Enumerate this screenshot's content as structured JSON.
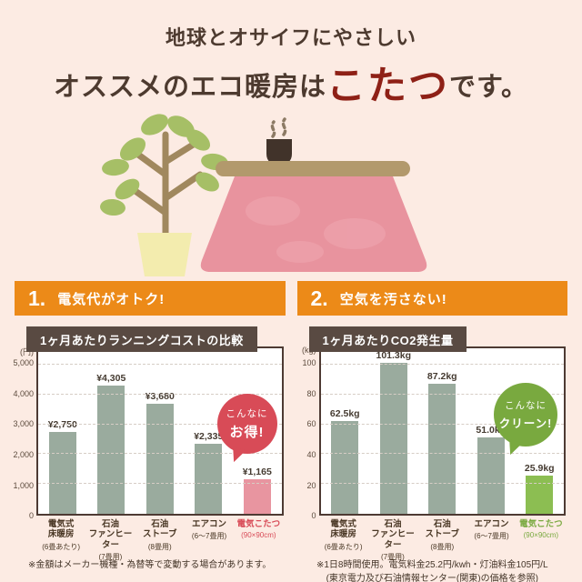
{
  "page": {
    "background": "#fcebe3"
  },
  "header": {
    "line1": "地球とオサイフにやさしい",
    "line2_prefix": "オススメのエコ暖房は",
    "line2_highlight": "こたつ",
    "line2_suffix": "です。",
    "highlight_color": "#8e2016"
  },
  "illustration": {
    "items": [
      "potted-plant",
      "kotatsu-table",
      "teacup-with-steam"
    ]
  },
  "sections": [
    {
      "number": "1.",
      "heading": "電気代がオトク!",
      "badge": {
        "line1": "こんなに",
        "line2": "お得!",
        "color": "#d84b57"
      },
      "note_lines": [
        "※金額はメーカー機種・為替等で変動する場合があります。"
      ]
    },
    {
      "number": "2.",
      "heading": "空気を汚さない!",
      "badge": {
        "line1": "こんなに",
        "line2": "クリーン!",
        "color": "#79a93f"
      },
      "note_lines": [
        "※1日8時間使用。電気料金25.2円/kwh・灯油料金105円/L",
        "(東京電力及び石油情報センター(関東)の価格を参照)"
      ]
    }
  ],
  "chart_data": [
    {
      "type": "bar",
      "title": "1ヶ月あたりランニングコストの比較",
      "unit_label": "(円)",
      "ylim": [
        0,
        5550
      ],
      "yticks": [
        0,
        1000,
        2000,
        3000,
        4000,
        5000
      ],
      "ytick_labels": [
        "0",
        "1,000",
        "2,000",
        "3,000",
        "4,000",
        "5,000"
      ],
      "grid": "dashed",
      "legend": "none",
      "categories": [
        {
          "label": "電気式\n床暖房",
          "sub": "(6畳あたり)"
        },
        {
          "label": "石油\nファンヒーター",
          "sub": "(7畳用)"
        },
        {
          "label": "石油\nストーブ",
          "sub": "(8畳用)"
        },
        {
          "label": "エアコン",
          "sub": "(6〜7畳用)"
        },
        {
          "label": "電気こたつ",
          "sub": "(90×90cm)",
          "color": "#d84b57"
        }
      ],
      "values": [
        2750,
        4305,
        3680,
        2335,
        1165
      ],
      "value_labels": [
        "¥2,750",
        "¥4,305",
        "¥3,680",
        "¥2,335",
        "¥1,165"
      ],
      "bar_default_color": "#9aab9e",
      "bar_highlight_color": "#e895a0",
      "highlight_index": 4
    },
    {
      "type": "bar",
      "title": "1ヶ月あたりCO2発生量",
      "unit_label": "(kg)",
      "ylim": [
        0,
        111
      ],
      "yticks": [
        0,
        20,
        40,
        60,
        80,
        100
      ],
      "ytick_labels": [
        "0",
        "20",
        "40",
        "60",
        "80",
        "100"
      ],
      "grid": "dashed",
      "legend": "none",
      "categories": [
        {
          "label": "電気式\n床暖房",
          "sub": "(6畳あたり)"
        },
        {
          "label": "石油\nファンヒーター",
          "sub": "(7畳用)"
        },
        {
          "label": "石油\nストーブ",
          "sub": "(8畳用)"
        },
        {
          "label": "エアコン",
          "sub": "(6〜7畳用)"
        },
        {
          "label": "電気こたつ",
          "sub": "(90×90cm)",
          "color": "#79a93f"
        }
      ],
      "values": [
        62.5,
        101.3,
        87.2,
        51.0,
        25.9
      ],
      "value_labels": [
        "62.5kg",
        "101.3kg",
        "87.2kg",
        "51.0kg",
        "25.9kg"
      ],
      "bar_default_color": "#9aab9e",
      "bar_highlight_color": "#8cbe52",
      "highlight_index": 4
    }
  ]
}
